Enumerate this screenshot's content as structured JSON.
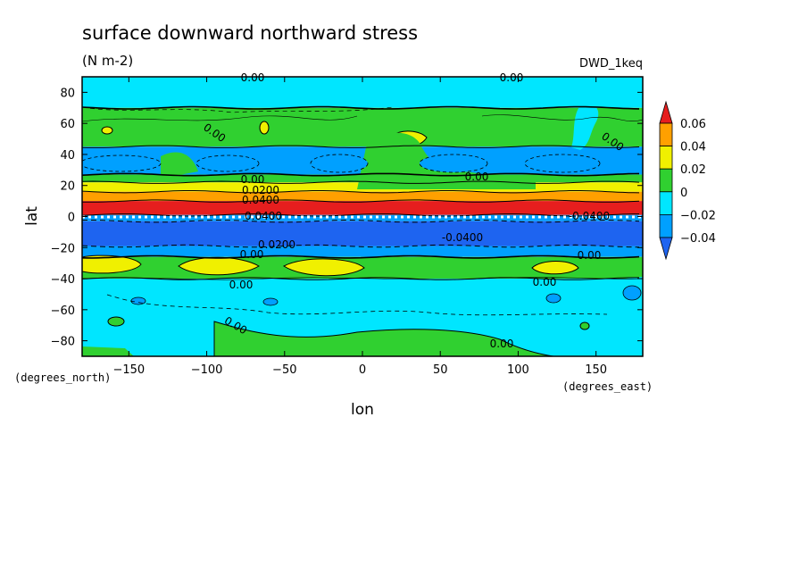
{
  "chart_data": {
    "type": "heatmap",
    "title": "surface downward northward stress",
    "units": "(N m-2)",
    "dataset_label": "DWD_1keq",
    "xlabel": "lon",
    "ylabel": "lat",
    "x_units": "(degrees_east)",
    "y_units": "(degrees_north)",
    "xlim": [
      -180,
      180
    ],
    "ylim": [
      -90,
      90
    ],
    "x_ticks": [
      -150,
      -100,
      -50,
      0,
      50,
      100,
      150
    ],
    "y_ticks": [
      -80,
      -60,
      -40,
      -20,
      0,
      20,
      40,
      60,
      80
    ],
    "x_tick_labels": [
      "−150",
      "−100",
      "−50",
      "0",
      "50",
      "100",
      "150"
    ],
    "y_tick_labels": [
      "−80",
      "−60",
      "−40",
      "−20",
      "0",
      "20",
      "40",
      "60",
      "80"
    ],
    "colorbar": {
      "levels": [
        -0.06,
        -0.04,
        -0.02,
        0,
        0.02,
        0.04,
        0.06
      ],
      "labels": [
        "0.06",
        "0.04",
        "0.02",
        "0",
        "−0.02",
        "−0.04"
      ],
      "colors": [
        "#1e64f0",
        "#00a0ff",
        "#00e6ff",
        "#30d030",
        "#f0f000",
        "#ffa000",
        "#e61e1e"
      ],
      "extend": "both"
    },
    "zonal_bands": [
      {
        "lat_from": 70,
        "lat_to": 90,
        "value": -0.005
      },
      {
        "lat_from": 45,
        "lat_to": 70,
        "value": 0.005
      },
      {
        "lat_from": 27,
        "lat_to": 45,
        "value": -0.025
      },
      {
        "lat_from": 22,
        "lat_to": 27,
        "value": 0.01
      },
      {
        "lat_from": 16,
        "lat_to": 22,
        "value": 0.03
      },
      {
        "lat_from": 10,
        "lat_to": 16,
        "value": 0.05
      },
      {
        "lat_from": 1,
        "lat_to": 10,
        "value": 0.07
      },
      {
        "lat_from": -3,
        "lat_to": 1,
        "value": -0.03
      },
      {
        "lat_from": -19,
        "lat_to": -3,
        "value": -0.05
      },
      {
        "lat_from": -26,
        "lat_to": -19,
        "value": -0.03
      },
      {
        "lat_from": -40,
        "lat_to": -26,
        "value": 0.01
      },
      {
        "lat_from": -90,
        "lat_to": -40,
        "value": -0.01
      }
    ],
    "contour_labels": [
      "0.00",
      "0.00",
      "0.00",
      "0.00",
      "0.00",
      "0.00",
      "0.00",
      "0.00",
      "0.00",
      "0.00",
      "0.0200",
      "0.0400",
      "0.0200",
      "0.0400",
      "-0.0400",
      "-0.0400",
      "0.00"
    ]
  }
}
